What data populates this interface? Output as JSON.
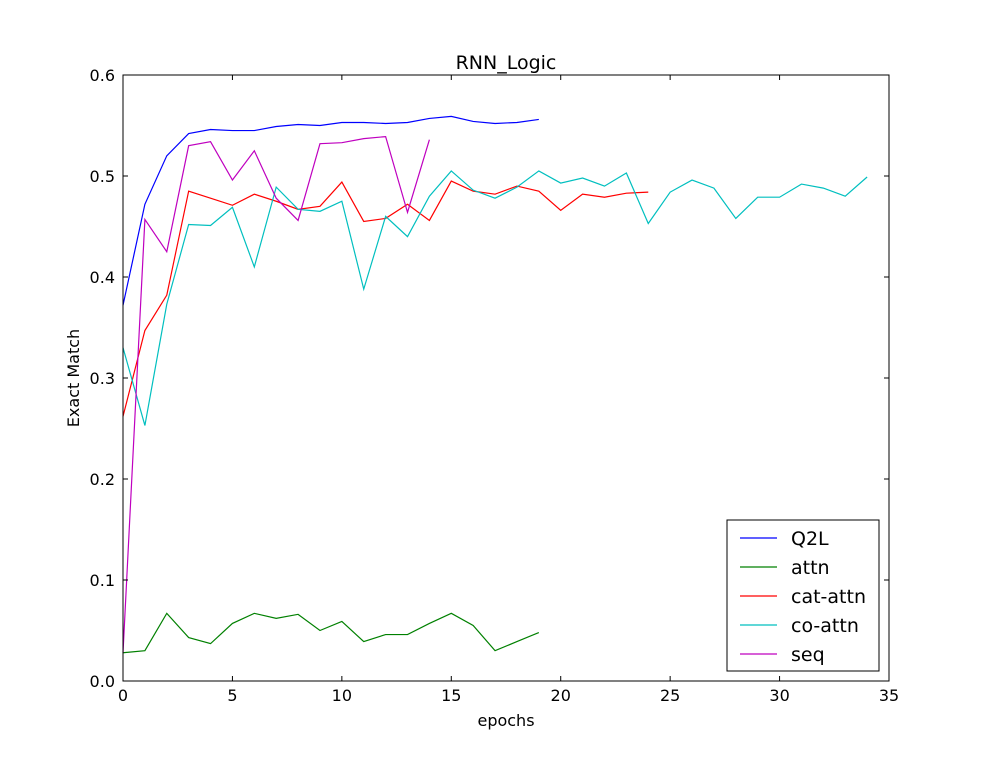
{
  "chart_data": {
    "type": "line",
    "title": "RNN_Logic",
    "xlabel": "epochs",
    "ylabel": "Exact Match",
    "xlim": [
      0,
      35
    ],
    "ylim": [
      0.0,
      0.6
    ],
    "xticks": [
      "0",
      "5",
      "10",
      "15",
      "20",
      "25",
      "30",
      "35"
    ],
    "yticks": [
      "0.0",
      "0.1",
      "0.2",
      "0.3",
      "0.4",
      "0.5",
      "0.6"
    ],
    "grid": false,
    "legend_position": "lower-right",
    "series": [
      {
        "name": "Q2L",
        "color": "#0000ff",
        "x": [
          0,
          1,
          2,
          3,
          4,
          5,
          6,
          7,
          8,
          9,
          10,
          11,
          12,
          13,
          14,
          15,
          16,
          17,
          18,
          19
        ],
        "y": [
          0.372,
          0.472,
          0.52,
          0.542,
          0.546,
          0.545,
          0.545,
          0.549,
          0.551,
          0.55,
          0.553,
          0.553,
          0.552,
          0.553,
          0.557,
          0.559,
          0.554,
          0.552,
          0.553,
          0.556
        ]
      },
      {
        "name": "attn",
        "color": "#008000",
        "x": [
          0,
          1,
          2,
          3,
          4,
          5,
          6,
          7,
          8,
          9,
          10,
          11,
          12,
          13,
          14,
          15,
          16,
          17,
          18,
          19
        ],
        "y": [
          0.028,
          0.03,
          0.067,
          0.043,
          0.037,
          0.057,
          0.067,
          0.062,
          0.066,
          0.05,
          0.059,
          0.039,
          0.046,
          0.046,
          0.057,
          0.067,
          0.055,
          0.03,
          0.039,
          0.048
        ]
      },
      {
        "name": "cat-attn",
        "color": "#ff0000",
        "x": [
          0,
          1,
          2,
          3,
          4,
          5,
          6,
          7,
          8,
          9,
          10,
          11,
          12,
          13,
          14,
          15,
          16,
          17,
          18,
          19,
          20,
          21,
          22,
          23,
          24
        ],
        "y": [
          0.262,
          0.347,
          0.382,
          0.485,
          0.478,
          0.471,
          0.482,
          0.475,
          0.467,
          0.47,
          0.494,
          0.455,
          0.458,
          0.472,
          0.456,
          0.495,
          0.485,
          0.482,
          0.49,
          0.485,
          0.466,
          0.482,
          0.479,
          0.483,
          0.484
        ]
      },
      {
        "name": "co-attn",
        "color": "#00bfbf",
        "x": [
          0,
          1,
          2,
          3,
          4,
          5,
          6,
          7,
          8,
          9,
          10,
          11,
          12,
          13,
          14,
          15,
          16,
          17,
          18,
          19,
          20,
          21,
          22,
          23,
          24,
          25,
          26,
          27,
          28,
          29,
          30,
          31,
          32,
          33,
          34
        ],
        "y": [
          0.33,
          0.253,
          0.373,
          0.452,
          0.451,
          0.469,
          0.41,
          0.489,
          0.467,
          0.465,
          0.475,
          0.388,
          0.46,
          0.44,
          0.48,
          0.505,
          0.486,
          0.478,
          0.489,
          0.505,
          0.493,
          0.498,
          0.49,
          0.503,
          0.453,
          0.484,
          0.496,
          0.488,
          0.458,
          0.479,
          0.479,
          0.492,
          0.488,
          0.48,
          0.499
        ]
      },
      {
        "name": "seq",
        "color": "#bf00bf",
        "x": [
          0,
          1,
          2,
          3,
          4,
          5,
          6,
          7,
          8,
          9,
          10,
          11,
          12,
          13,
          14
        ],
        "y": [
          0.028,
          0.457,
          0.425,
          0.53,
          0.534,
          0.496,
          0.525,
          0.478,
          0.456,
          0.532,
          0.533,
          0.537,
          0.539,
          0.464,
          0.536
        ]
      }
    ]
  }
}
